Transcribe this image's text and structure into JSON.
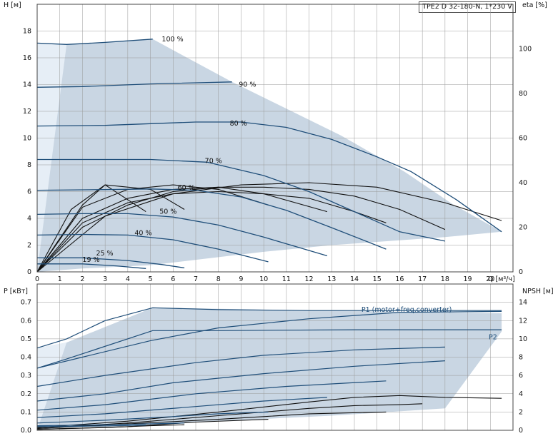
{
  "product_label": "TPE2 D 32-180-N, 1*230 V",
  "colors": {
    "envelope": "#c9d6e3",
    "envelope_light": "#e6eef6",
    "curve": "#1f4e79",
    "eta": "#111111",
    "grid": "#999999",
    "frame": "#444444"
  },
  "chart_data": [
    {
      "type": "line",
      "title": "",
      "xlabel": "Q [м³/ч]",
      "ylabel_left": "H [м]",
      "ylabel_right": "eta [%]",
      "xlim": [
        0,
        21
      ],
      "ylim": [
        0,
        20
      ],
      "ylim_right": [
        0,
        120
      ],
      "x_ticks": [
        "0",
        "1",
        "2",
        "3",
        "4",
        "5",
        "6",
        "7",
        "8",
        "9",
        "10",
        "11",
        "12",
        "13",
        "14",
        "15",
        "16",
        "17",
        "18",
        "19",
        "20"
      ],
      "y_ticks": [
        "0",
        "2",
        "4",
        "6",
        "8",
        "10",
        "12",
        "14",
        "16",
        "18"
      ],
      "y_right_ticks": [
        "0",
        "20",
        "40",
        "60",
        "80",
        "100"
      ],
      "grid": true,
      "envelope": [
        [
          0,
          0
        ],
        [
          0,
          17.1
        ],
        [
          1.3,
          17.0
        ],
        [
          5.1,
          17.4
        ],
        [
          8.6,
          14.2
        ],
        [
          13.4,
          10.2
        ],
        [
          16.2,
          7.5
        ],
        [
          18.3,
          5.1
        ],
        [
          20.5,
          3.0
        ],
        [
          18,
          2.6
        ],
        [
          13,
          2.0
        ],
        [
          10,
          1.5
        ],
        [
          7,
          0.9
        ],
        [
          5,
          0.5
        ],
        [
          2,
          0.25
        ]
      ],
      "series": [
        {
          "name": "100 %",
          "x": [
            0,
            1.3,
            3,
            5.1
          ],
          "y": [
            17.1,
            17.0,
            17.15,
            17.4
          ]
        },
        {
          "name": "90 %",
          "x": [
            0,
            2,
            5,
            8.6
          ],
          "y": [
            13.8,
            13.85,
            14.05,
            14.2
          ]
        },
        {
          "name": "80 %",
          "x": [
            0,
            3,
            7,
            9,
            11,
            13,
            15,
            16.5,
            18.5,
            20.5
          ],
          "y": [
            10.9,
            10.95,
            11.2,
            11.2,
            10.8,
            9.9,
            8.6,
            7.5,
            5.4,
            3.0
          ]
        },
        {
          "name": "70 %",
          "x": [
            0,
            2,
            5,
            7.5,
            10,
            12,
            14,
            16,
            18
          ],
          "y": [
            8.4,
            8.4,
            8.4,
            8.2,
            7.2,
            6.0,
            4.5,
            3.0,
            2.3
          ]
        },
        {
          "name": "60 %",
          "x": [
            0,
            3,
            5,
            7,
            9,
            11,
            13,
            15.4
          ],
          "y": [
            6.1,
            6.15,
            6.2,
            6.1,
            5.6,
            4.6,
            3.3,
            1.7
          ]
        },
        {
          "name": "50 %",
          "x": [
            0,
            2,
            4,
            6,
            8,
            10,
            12.8
          ],
          "y": [
            4.3,
            4.35,
            4.35,
            4.1,
            3.5,
            2.6,
            1.2
          ]
        },
        {
          "name": "40 %",
          "x": [
            0,
            2,
            4,
            6,
            8,
            10.2
          ],
          "y": [
            2.75,
            2.8,
            2.75,
            2.4,
            1.7,
            0.75
          ]
        },
        {
          "name": "25 %",
          "x": [
            0,
            2,
            4,
            5.5,
            6.5
          ],
          "y": [
            1.05,
            1.05,
            0.85,
            0.55,
            0.3
          ]
        },
        {
          "name": "19 %",
          "x": [
            0,
            2,
            3.5,
            4.8
          ],
          "y": [
            0.6,
            0.6,
            0.45,
            0.25
          ]
        }
      ],
      "eta": [
        {
          "x": [
            0,
            3,
            6,
            9,
            12,
            15,
            18,
            20.5
          ],
          "y": [
            0,
            25,
            35,
            39,
            40,
            38,
            31,
            23
          ]
        },
        {
          "x": [
            0,
            2,
            4,
            6,
            8,
            10,
            12,
            14,
            16,
            18
          ],
          "y": [
            0,
            20,
            30,
            36,
            38,
            38,
            37,
            34,
            28,
            19
          ]
        },
        {
          "x": [
            0,
            2,
            4,
            6,
            8,
            10,
            12,
            14,
            15.4
          ],
          "y": [
            0,
            22,
            31,
            35,
            36,
            35,
            33,
            27,
            22
          ]
        },
        {
          "x": [
            0,
            2,
            4,
            6,
            8,
            10,
            12.8
          ],
          "y": [
            0,
            24,
            33,
            37,
            38,
            35,
            27
          ]
        },
        {
          "x": [
            0,
            2,
            4,
            6,
            8,
            10.2
          ],
          "y": [
            0,
            29,
            37,
            39,
            37,
            30
          ]
        },
        {
          "x": [
            0,
            2,
            3,
            5,
            6.5
          ],
          "y": [
            0,
            30,
            39,
            37,
            28
          ]
        },
        {
          "x": [
            0,
            1.5,
            3,
            4.8
          ],
          "y": [
            0,
            28,
            39,
            27
          ]
        }
      ],
      "curve_labels": [
        {
          "text": "100 %",
          "x": 5.5,
          "y": 17.4
        },
        {
          "text": "90 %",
          "x": 8.9,
          "y": 14.0
        },
        {
          "text": "80 %",
          "x": 8.5,
          "y": 11.1
        },
        {
          "text": "70 %",
          "x": 7.4,
          "y": 8.3
        },
        {
          "text": "60 %",
          "x": 6.2,
          "y": 6.3
        },
        {
          "text": "50 %",
          "x": 5.4,
          "y": 4.5
        },
        {
          "text": "40 %",
          "x": 4.3,
          "y": 2.9
        },
        {
          "text": "25 %",
          "x": 2.6,
          "y": 1.4
        },
        {
          "text": "19 %",
          "x": 2.0,
          "y": 0.9
        }
      ]
    },
    {
      "type": "line",
      "title": "",
      "xlabel": "",
      "ylabel_left": "P [кВт]",
      "ylabel_right": "NPSH [м]",
      "xlim": [
        0,
        21
      ],
      "ylim": [
        0,
        0.8
      ],
      "ylim_right": [
        0,
        16
      ],
      "y_ticks": [
        "0.0",
        "0.1",
        "0.2",
        "0.3",
        "0.4",
        "0.5",
        "0.6",
        "0.7"
      ],
      "y_right_ticks": [
        "0",
        "2",
        "4",
        "6",
        "8",
        "10",
        "12",
        "14"
      ],
      "grid": true,
      "envelope": [
        [
          0,
          0
        ],
        [
          0,
          0.45
        ],
        [
          1.3,
          0.48
        ],
        [
          5.1,
          0.67
        ],
        [
          20.5,
          0.64
        ],
        [
          20.5,
          0.54
        ],
        [
          18,
          0.12
        ],
        [
          13,
          0.08
        ],
        [
          8,
          0.05
        ],
        [
          4,
          0.03
        ],
        [
          1.5,
          0.02
        ]
      ],
      "series_p1": [
        {
          "x": [
            0,
            1.3,
            3,
            5.1,
            8,
            12,
            16,
            20.5
          ],
          "y": [
            0.45,
            0.5,
            0.6,
            0.67,
            0.66,
            0.655,
            0.655,
            0.655
          ]
        },
        {
          "x": [
            0,
            2,
            5,
            8,
            12,
            16,
            20.5
          ],
          "y": [
            0.34,
            0.4,
            0.49,
            0.56,
            0.61,
            0.645,
            0.65
          ]
        },
        {
          "x": [
            0,
            3,
            7,
            10,
            14,
            18
          ],
          "y": [
            0.24,
            0.3,
            0.37,
            0.41,
            0.44,
            0.455
          ]
        },
        {
          "x": [
            0,
            3,
            6,
            10,
            14,
            18
          ],
          "y": [
            0.16,
            0.2,
            0.26,
            0.31,
            0.35,
            0.38
          ]
        },
        {
          "x": [
            0,
            3,
            7,
            11,
            15.4
          ],
          "y": [
            0.11,
            0.14,
            0.2,
            0.24,
            0.27
          ]
        },
        {
          "x": [
            0,
            3,
            7,
            10,
            12.8
          ],
          "y": [
            0.07,
            0.09,
            0.13,
            0.16,
            0.18
          ]
        },
        {
          "x": [
            0,
            3,
            6,
            8,
            10.2
          ],
          "y": [
            0.04,
            0.055,
            0.075,
            0.09,
            0.1
          ]
        },
        {
          "x": [
            0,
            3,
            5,
            6.5
          ],
          "y": [
            0.025,
            0.03,
            0.035,
            0.04
          ]
        },
        {
          "x": [
            0,
            2,
            3.5,
            4.8
          ],
          "y": [
            0.02,
            0.022,
            0.025,
            0.028
          ]
        }
      ],
      "series_p2": [
        {
          "x": [
            0,
            1.3,
            5.1,
            8,
            14,
            20.5
          ],
          "y": [
            0.34,
            0.39,
            0.545,
            0.545,
            0.55,
            0.55
          ]
        }
      ],
      "npsh": [
        {
          "x": [
            0,
            4,
            8,
            12,
            14,
            16,
            18,
            20.5
          ],
          "y": [
            0.3,
            1.0,
            2.0,
            3.1,
            3.6,
            3.8,
            3.6,
            3.5
          ]
        },
        {
          "x": [
            0,
            4,
            8,
            12,
            14,
            16,
            17
          ],
          "y": [
            0.2,
            0.8,
            1.6,
            2.4,
            2.7,
            2.8,
            2.9
          ]
        },
        {
          "x": [
            0,
            4,
            8,
            10,
            12,
            15.4
          ],
          "y": [
            0.2,
            0.7,
            1.2,
            1.5,
            1.8,
            2.0
          ]
        },
        {
          "x": [
            0,
            4,
            7,
            10.2
          ],
          "y": [
            0.1,
            0.4,
            0.9,
            1.2
          ]
        },
        {
          "x": [
            0,
            3,
            5,
            6.5
          ],
          "y": [
            0.1,
            0.3,
            0.5,
            0.6
          ]
        }
      ],
      "annotations": [
        {
          "text": "P1 (motor+freq.converter)",
          "x": 18.3,
          "y": 0.66
        },
        {
          "text": "P2",
          "x": 20.3,
          "y": 0.51
        }
      ]
    }
  ]
}
